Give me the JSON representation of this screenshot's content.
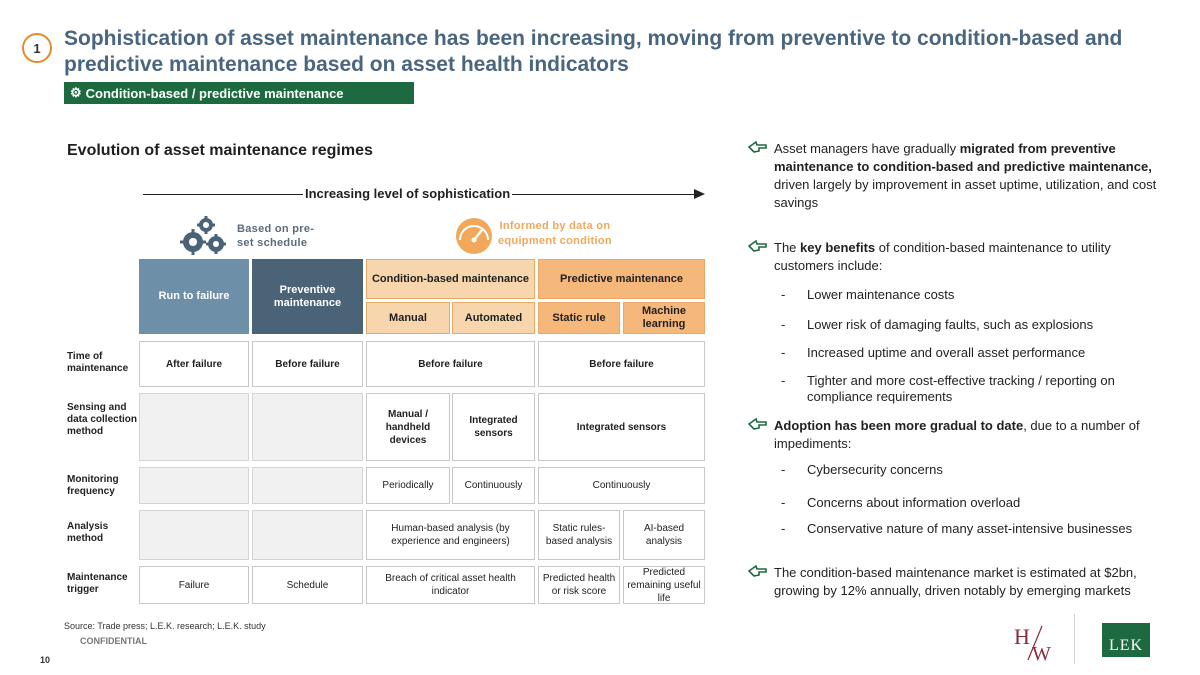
{
  "header": {
    "badge": "1",
    "title": "Sophistication of asset maintenance has been increasing, moving from preventive to condition-based and predictive maintenance based on asset health indicators",
    "tag": "Condition-based / predictive maintenance"
  },
  "chart_section": {
    "title": "Evolution of asset maintenance regimes",
    "arrow_label": "Increasing level of sophistication",
    "schedule_label": "Based on pre-set schedule",
    "data_label": "Informed by data on equipment condition",
    "columns": {
      "run_to_failure": "Run to failure",
      "preventive": "Preventive maintenance",
      "condition_based": "Condition-based maintenance",
      "predictive": "Predictive maintenance",
      "manual": "Manual",
      "automated": "Automated",
      "static_rule": "Static rule",
      "machine_learning": "Machine learning"
    },
    "rows": {
      "time": {
        "label": "Time of maintenance",
        "run": "After failure",
        "prev": "Before failure",
        "cond": "Before failure",
        "pred": "Before failure"
      },
      "sensing": {
        "label": "Sensing and data collection method",
        "manual": "Manual / handheld devices",
        "automated": "Integrated sensors",
        "pred": "Integrated sensors"
      },
      "monitoring": {
        "label": "Monitoring frequency",
        "manual": "Periodically",
        "automated": "Continuously",
        "pred": "Continuously"
      },
      "analysis": {
        "label": "Analysis method",
        "cond": "Human-based analysis (by experience and engineers)",
        "static": "Static rules-based analysis",
        "ml": "AI-based analysis"
      },
      "trigger": {
        "label": "Maintenance trigger",
        "run": "Failure",
        "prev": "Schedule",
        "cond": "Breach of critical asset health indicator",
        "static": "Predicted health or risk score",
        "ml": "Predicted remaining useful life"
      }
    }
  },
  "bullets": {
    "b1_pre": "Asset managers have gradually ",
    "b1_bold": "migrated from preventive maintenance to condition-based and predictive maintenance,",
    "b1_post": " driven largely by improvement in asset uptime, utilization, and cost savings",
    "b2_pre": "The ",
    "b2_bold": "key benefits",
    "b2_post": " of condition-based maintenance to utility customers include:",
    "b2_subs": [
      "Lower maintenance costs",
      "Lower risk of damaging faults, such as explosions",
      "Increased uptime and overall asset performance",
      "Tighter and more cost-effective tracking / reporting on compliance requirements"
    ],
    "b3_bold": "Adoption has been more gradual to date",
    "b3_post": ", due to a number of impediments:",
    "b3_subs": [
      "Cybersecurity concerns",
      "Concerns about information overload",
      "Conservative nature of many asset-intensive businesses"
    ],
    "b4": "The condition-based maintenance market is estimated at $2bn, growing by 12% annually, driven notably by emerging markets"
  },
  "footer": {
    "source": "Source: Trade press; L.E.K. research; L.E.K. study",
    "confidential": "CONFIDENTIAL",
    "page": "10",
    "logo_hw": "H/W",
    "logo_lek": "LEK"
  },
  "colors": {
    "title": "#4a6580",
    "tag_bg": "#1d6a40",
    "run_to_failure": "#6e8fa8",
    "preventive": "#4b6377",
    "condition": "#f8d6ad",
    "predictive": "#f6b77b",
    "badge_ring": "#e68a2e"
  },
  "icons": [
    "gears-icon",
    "gauge-icon",
    "pointing-hand-icon",
    "cog-icon"
  ]
}
